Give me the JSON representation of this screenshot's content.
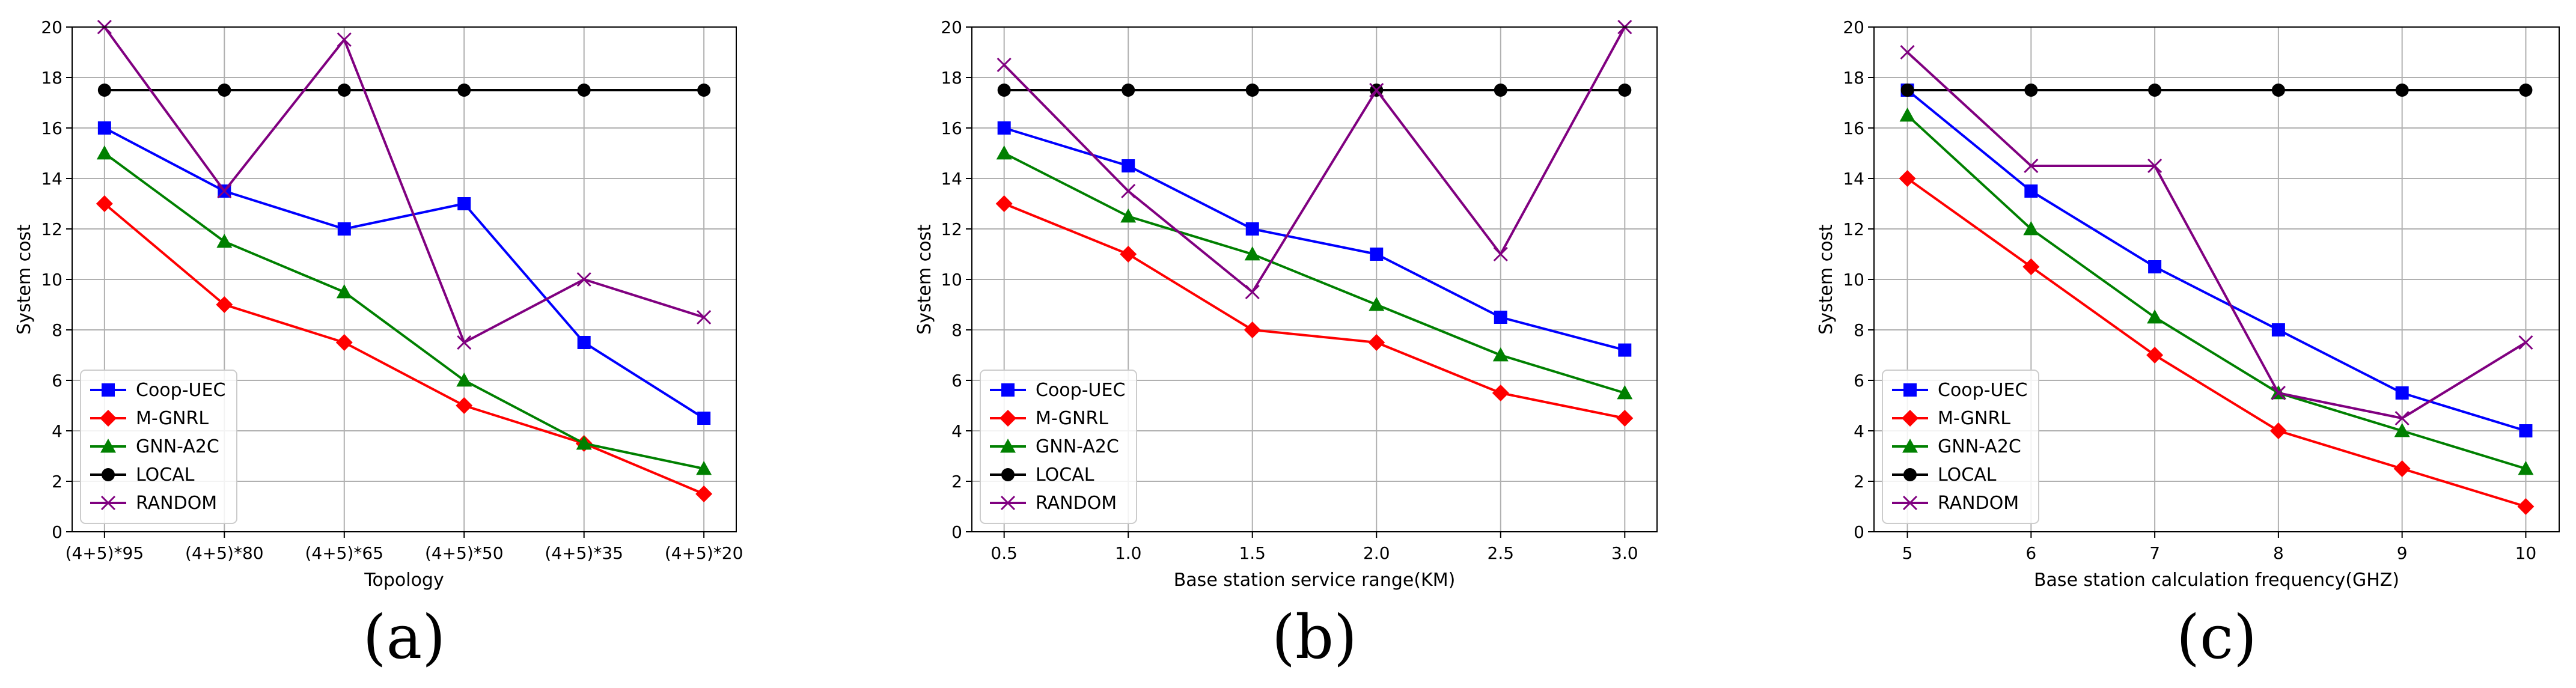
{
  "chart_data": [
    {
      "type": "line",
      "panel_label": "(a)",
      "title": "",
      "xlabel": "Topology",
      "ylabel": "System cost",
      "x_categorical": true,
      "categories": [
        "(4+5)*95",
        "(4+5)*80",
        "(4+5)*65",
        "(4+5)*50",
        "(4+5)*35",
        "(4+5)*20"
      ],
      "x": [
        0,
        1,
        2,
        3,
        4,
        5
      ],
      "xlim": [
        -0.27,
        5.27
      ],
      "xticks": [
        0,
        1,
        2,
        3,
        4,
        5
      ],
      "xtick_labels": [
        "(4+5)*95",
        "(4+5)*80",
        "(4+5)*65",
        "(4+5)*50",
        "(4+5)*35",
        "(4+5)*20"
      ],
      "ylim": [
        0,
        20
      ],
      "yticks": [
        0,
        2,
        4,
        6,
        8,
        10,
        12,
        14,
        16,
        18,
        20
      ],
      "ytick_labels": [
        "0",
        "2",
        "4",
        "6",
        "8",
        "10",
        "12",
        "14",
        "16",
        "18",
        "20"
      ],
      "grid": true,
      "legend_position": "lower-left",
      "series": [
        {
          "name": "Coop-UEC",
          "color": "#0000ff",
          "marker": "square",
          "values": [
            16,
            13.5,
            12,
            13,
            7.5,
            4.5
          ]
        },
        {
          "name": "M-GNRL",
          "color": "#ff0000",
          "marker": "diamond",
          "values": [
            13,
            9,
            7.5,
            5,
            3.5,
            1.5
          ]
        },
        {
          "name": "GNN-A2C",
          "color": "#008000",
          "marker": "triangle",
          "values": [
            15,
            11.5,
            9.5,
            6,
            3.5,
            2.5
          ]
        },
        {
          "name": "LOCAL",
          "color": "#000000",
          "marker": "circle",
          "values": [
            17.5,
            17.5,
            17.5,
            17.5,
            17.5,
            17.5
          ]
        },
        {
          "name": "RANDOM",
          "color": "#800080",
          "marker": "x",
          "values": [
            20,
            13.5,
            19.5,
            7.5,
            10,
            8.5
          ]
        }
      ]
    },
    {
      "type": "line",
      "panel_label": "(b)",
      "title": "",
      "xlabel": "Base station service range(KM)",
      "ylabel": "System cost",
      "x_categorical": false,
      "x": [
        0.5,
        1.0,
        1.5,
        2.0,
        2.5,
        3.0
      ],
      "xlim": [
        0.37,
        3.13
      ],
      "xticks": [
        0.5,
        1.0,
        1.5,
        2.0,
        2.5,
        3.0
      ],
      "xtick_labels": [
        "0.5",
        "1.0",
        "1.5",
        "2.0",
        "2.5",
        "3.0"
      ],
      "ylim": [
        0,
        20
      ],
      "yticks": [
        0,
        2,
        4,
        6,
        8,
        10,
        12,
        14,
        16,
        18,
        20
      ],
      "ytick_labels": [
        "0",
        "2",
        "4",
        "6",
        "8",
        "10",
        "12",
        "14",
        "16",
        "18",
        "20"
      ],
      "grid": true,
      "legend_position": "lower-left",
      "series": [
        {
          "name": "Coop-UEC",
          "color": "#0000ff",
          "marker": "square",
          "values": [
            16,
            14.5,
            12,
            11,
            8.5,
            7.2
          ]
        },
        {
          "name": "M-GNRL",
          "color": "#ff0000",
          "marker": "diamond",
          "values": [
            13,
            11,
            8,
            7.5,
            5.5,
            4.5
          ]
        },
        {
          "name": "GNN-A2C",
          "color": "#008000",
          "marker": "triangle",
          "values": [
            15,
            12.5,
            11,
            9,
            7,
            5.5
          ]
        },
        {
          "name": "LOCAL",
          "color": "#000000",
          "marker": "circle",
          "values": [
            17.5,
            17.5,
            17.5,
            17.5,
            17.5,
            17.5
          ]
        },
        {
          "name": "RANDOM",
          "color": "#800080",
          "marker": "x",
          "values": [
            18.5,
            13.5,
            9.5,
            17.5,
            11,
            20
          ]
        }
      ]
    },
    {
      "type": "line",
      "panel_label": "(c)",
      "title": "",
      "xlabel": "Base station calculation frequency(GHZ)",
      "ylabel": "System cost",
      "x_categorical": false,
      "x": [
        5,
        6,
        7,
        8,
        9,
        10
      ],
      "xlim": [
        4.73,
        10.27
      ],
      "xticks": [
        5,
        6,
        7,
        8,
        9,
        10
      ],
      "xtick_labels": [
        "5",
        "6",
        "7",
        "8",
        "9",
        "10"
      ],
      "ylim": [
        0,
        20
      ],
      "yticks": [
        0,
        2,
        4,
        6,
        8,
        10,
        12,
        14,
        16,
        18,
        20
      ],
      "ytick_labels": [
        "0",
        "2",
        "4",
        "6",
        "8",
        "10",
        "12",
        "14",
        "16",
        "18",
        "20"
      ],
      "grid": true,
      "legend_position": "lower-left",
      "series": [
        {
          "name": "Coop-UEC",
          "color": "#0000ff",
          "marker": "square",
          "values": [
            17.5,
            13.5,
            10.5,
            8,
            5.5,
            4
          ]
        },
        {
          "name": "M-GNRL",
          "color": "#ff0000",
          "marker": "diamond",
          "values": [
            14,
            10.5,
            7,
            4,
            2.5,
            1
          ]
        },
        {
          "name": "GNN-A2C",
          "color": "#008000",
          "marker": "triangle",
          "values": [
            16.5,
            12,
            8.5,
            5.5,
            4,
            2.5
          ]
        },
        {
          "name": "LOCAL",
          "color": "#000000",
          "marker": "circle",
          "values": [
            17.5,
            17.5,
            17.5,
            17.5,
            17.5,
            17.5
          ]
        },
        {
          "name": "RANDOM",
          "color": "#800080",
          "marker": "x",
          "values": [
            19,
            14.5,
            14.5,
            5.5,
            4.5,
            7.5
          ]
        }
      ]
    }
  ]
}
